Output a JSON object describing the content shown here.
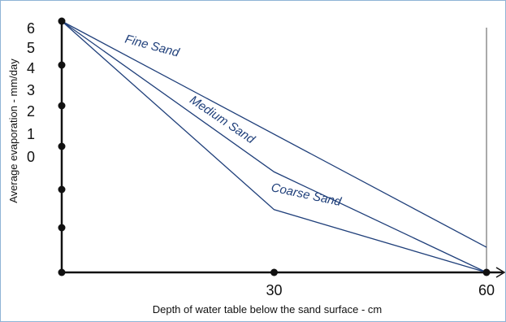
{
  "colors": {
    "frame_border": "#8fb4d6",
    "axis": "#111111",
    "series": "#1f3f7a",
    "ref_line": "#555555"
  },
  "chart_data": {
    "type": "line",
    "title": "",
    "xlabel": "Depth of water table below the sand surface - cm",
    "ylabel": "Average evaporation - mm/day",
    "xlim": [
      0,
      60
    ],
    "x_ticks": [
      {
        "value": 30,
        "label": "30"
      },
      {
        "value": 60,
        "label": "60"
      }
    ],
    "y_tick_labels": [
      "6",
      "5",
      "4",
      "3",
      "2",
      "1",
      "0"
    ],
    "grid": false,
    "legend": "inline labels",
    "series": [
      {
        "name": "Fine Sand",
        "x": [
          0,
          60
        ],
        "y": [
          6,
          0.6
        ]
      },
      {
        "name": "Medium Sand",
        "x": [
          0,
          30,
          60
        ],
        "y": [
          6,
          2.4,
          0
        ]
      },
      {
        "name": "Coarse Sand",
        "x": [
          0,
          30,
          60
        ],
        "y": [
          6,
          1.5,
          0
        ]
      }
    ]
  }
}
